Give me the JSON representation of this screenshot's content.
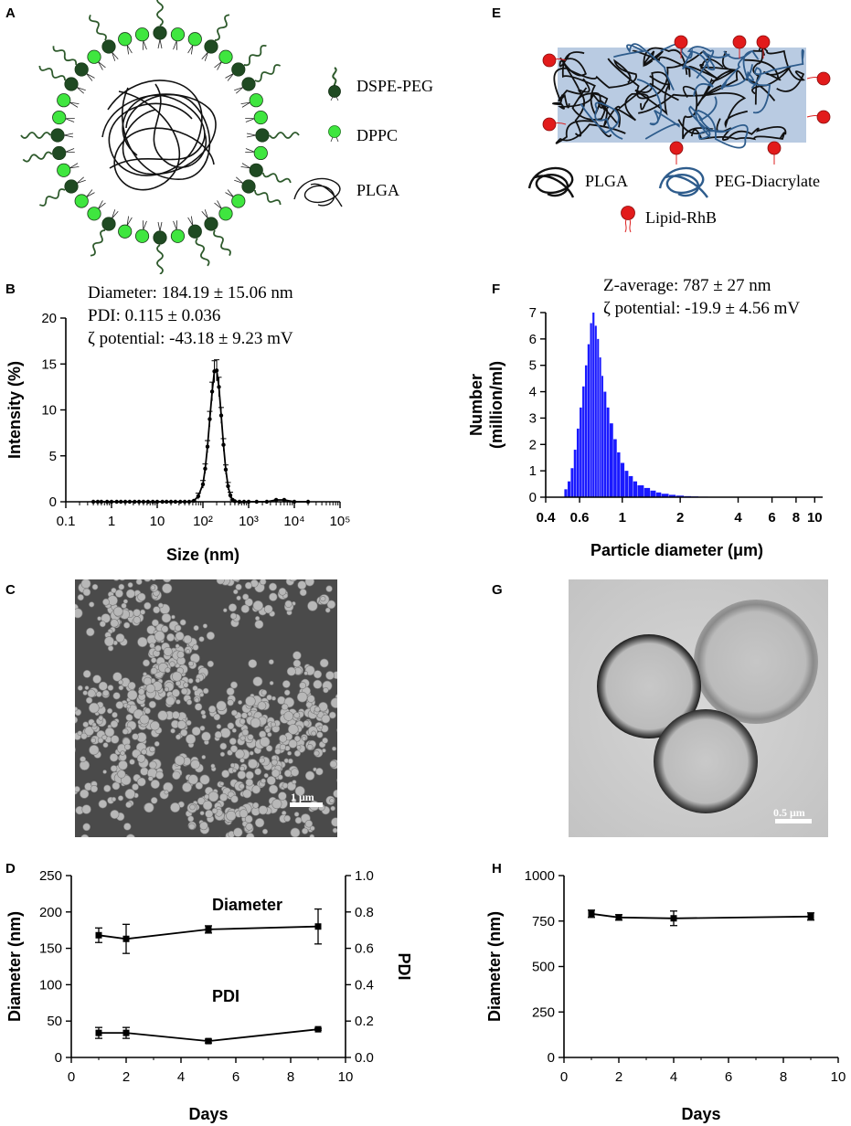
{
  "panels": {
    "A": {
      "letter": "A",
      "legend": [
        {
          "label": "DSPE-PEG"
        },
        {
          "label": "DPPC"
        },
        {
          "label": "PLGA"
        }
      ],
      "colors": {
        "dspe_peg": "#1f4a22",
        "dppc": "#3fe63f",
        "peg_chain": "#2e5a2c"
      }
    },
    "E": {
      "letter": "E",
      "legend": [
        {
          "label": "PLGA"
        },
        {
          "label": "PEG-Diacrylate"
        },
        {
          "label": "Lipid-RhB"
        }
      ],
      "colors": {
        "box": "#b9cbe2",
        "plga": "#111111",
        "peg": "#2e5c8c",
        "rhb": "#e21b1b"
      }
    },
    "B": {
      "letter": "B",
      "stats": [
        "Diameter: 184.19 ± 15.06 nm",
        "PDI: 0.115 ± 0.036",
        "ζ potential: -43.18 ± 9.23 mV"
      ]
    },
    "F": {
      "letter": "F",
      "stats": [
        "Z-average: 787 ± 27 nm",
        "ζ potential: -19.9 ± 4.56 mV"
      ]
    },
    "C": {
      "letter": "C",
      "scalebar": "1 μm"
    },
    "G": {
      "letter": "G",
      "scalebar": "0.5 μm"
    },
    "D": {
      "letter": "D",
      "annotations": [
        "Diameter",
        "PDI"
      ]
    },
    "H": {
      "letter": "H"
    }
  },
  "chart_data": [
    {
      "id": "B",
      "type": "line",
      "xlabel": "Size (nm)",
      "ylabel": "Intensity (%)",
      "xscale": "log",
      "xlim": [
        0.1,
        100000
      ],
      "ylim": [
        0,
        20
      ],
      "xticks": [
        "0.1",
        "1",
        "10",
        "10²",
        "10³",
        "10⁴",
        "10⁵"
      ],
      "yticks": [
        "0",
        "5",
        "10",
        "15",
        "20"
      ],
      "series": [
        {
          "x": [
            0.4,
            0.5,
            0.6,
            0.8,
            1,
            1.3,
            1.6,
            2,
            2.5,
            3.2,
            4,
            5,
            6.3,
            8,
            10,
            13,
            16,
            20,
            25,
            32,
            40,
            50,
            63,
            79,
            100,
            112,
            126,
            141,
            159,
            178,
            200,
            224,
            251,
            282,
            316,
            355,
            398,
            447,
            501,
            631,
            794,
            1000,
            1500,
            2500,
            4000,
            6000,
            10000,
            20000
          ],
          "y": [
            0,
            0,
            0,
            0,
            0,
            0,
            0,
            0,
            0,
            0,
            0,
            0,
            0,
            0,
            0,
            0,
            0,
            0,
            0,
            0,
            0,
            0,
            0.1,
            0.6,
            1.9,
            3.6,
            6.0,
            9.0,
            12.0,
            14.2,
            14.3,
            12.5,
            9.4,
            6.2,
            3.5,
            1.7,
            0.7,
            0.2,
            0.05,
            0,
            0,
            0,
            0,
            0,
            0.2,
            0.2,
            0,
            0
          ]
        }
      ]
    },
    {
      "id": "F",
      "type": "bar",
      "xlabel": "Particle diameter (μm)",
      "ylabel": "Number (million/ml)",
      "xscale": "log",
      "xlim": [
        0.4,
        11
      ],
      "ylim": [
        0,
        7
      ],
      "xticks": [
        "0.4",
        "0.6",
        "1",
        "2",
        "4",
        "6",
        "8",
        "10"
      ],
      "yticks": [
        "0",
        "1",
        "2",
        "3",
        "4",
        "5",
        "6",
        "7"
      ],
      "color": "#1a1aff",
      "series": [
        {
          "x": [
            0.5,
            0.52,
            0.54,
            0.56,
            0.58,
            0.6,
            0.62,
            0.64,
            0.66,
            0.68,
            0.7,
            0.72,
            0.74,
            0.76,
            0.78,
            0.8,
            0.83,
            0.86,
            0.9,
            0.94,
            0.98,
            1.03,
            1.08,
            1.14,
            1.2,
            1.3,
            1.4,
            1.5,
            1.6,
            1.75,
            1.9,
            2.1,
            2.3,
            2.5,
            2.8,
            3.2
          ],
          "y": [
            0.3,
            0.6,
            1.1,
            1.8,
            2.6,
            3.4,
            4.2,
            5.0,
            5.8,
            6.6,
            7.0,
            6.5,
            6.0,
            5.3,
            4.6,
            4.0,
            3.4,
            2.8,
            2.2,
            1.7,
            1.3,
            1.0,
            0.8,
            0.6,
            0.45,
            0.35,
            0.25,
            0.18,
            0.13,
            0.09,
            0.06,
            0.04,
            0.03,
            0.02,
            0.01,
            0.01
          ]
        }
      ]
    },
    {
      "id": "D",
      "type": "line",
      "xlabel": "Days",
      "ylabel": "Diameter (nm)",
      "y2label": "PDI",
      "xlim": [
        0,
        10
      ],
      "ylim": [
        0,
        250
      ],
      "y2lim": [
        0,
        1.0
      ],
      "xticks": [
        "0",
        "2",
        "4",
        "6",
        "8",
        "10"
      ],
      "yticks": [
        "0",
        "50",
        "100",
        "150",
        "200",
        "250"
      ],
      "y2ticks": [
        "0.0",
        "0.2",
        "0.4",
        "0.6",
        "0.8",
        "1.0"
      ],
      "series": [
        {
          "name": "Diameter",
          "x": [
            1,
            2,
            5,
            9
          ],
          "y": [
            168,
            163,
            176,
            180
          ],
          "err": [
            10,
            20,
            5,
            24
          ],
          "axis": "left"
        },
        {
          "name": "PDI",
          "x": [
            1,
            2,
            5,
            9
          ],
          "y": [
            0.135,
            0.135,
            0.09,
            0.155
          ],
          "err": [
            0.03,
            0.03,
            0.01,
            0.005
          ],
          "axis": "right"
        }
      ]
    },
    {
      "id": "H",
      "type": "line",
      "xlabel": "Days",
      "ylabel": "Diameter (nm)",
      "xlim": [
        0,
        10
      ],
      "ylim": [
        0,
        1000
      ],
      "xticks": [
        "0",
        "2",
        "4",
        "6",
        "8",
        "10"
      ],
      "yticks": [
        "0",
        "250",
        "500",
        "750",
        "1000"
      ],
      "series": [
        {
          "x": [
            1,
            2,
            4,
            9
          ],
          "y": [
            790,
            770,
            765,
            775
          ],
          "err": [
            20,
            15,
            40,
            20
          ]
        }
      ]
    }
  ]
}
